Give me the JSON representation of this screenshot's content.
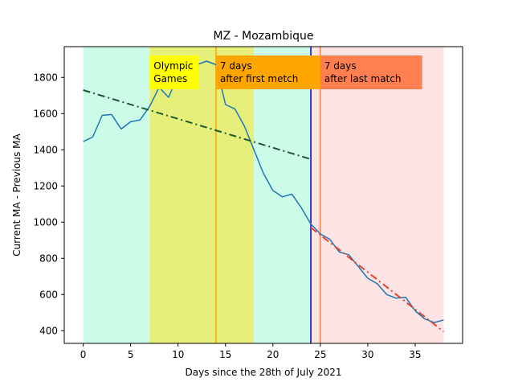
{
  "chart_data": {
    "type": "line",
    "title": "MZ - Mozambique",
    "xlabel": "Days since the 28th of July 2021",
    "ylabel": "Current MA - Previous MA",
    "xlim": [
      -2,
      40
    ],
    "ylim": [
      330,
      1970
    ],
    "xticks": [
      0,
      5,
      10,
      15,
      20,
      25,
      30,
      35
    ],
    "yticks": [
      400,
      600,
      800,
      1000,
      1200,
      1400,
      1600,
      1800
    ],
    "grid": false,
    "regions": [
      {
        "x0": 0,
        "x1": 7,
        "color": "#ccfbe8"
      },
      {
        "x0": 7,
        "x1": 18,
        "color": "#e5ef7a"
      },
      {
        "x0": 18,
        "x1": 24,
        "color": "#ccfbe8"
      },
      {
        "x0": 24,
        "x1": 38,
        "color": "#fde4e4"
      }
    ],
    "vlines": [
      {
        "x": 14,
        "color": "#ffa500"
      },
      {
        "x": 24,
        "color": "#0000cc"
      },
      {
        "x": 25,
        "color": "#ff7f50"
      }
    ],
    "annotations": [
      {
        "text": [
          "Olympic",
          "Games"
        ],
        "x": 7,
        "bg": "#ffff00"
      },
      {
        "text": [
          "7 days",
          "after first metch"
        ],
        "x": 14,
        "bg": "#ffa500"
      },
      {
        "text": [
          "7 days",
          "after last match"
        ],
        "x": 25,
        "bg": "#ff7f50"
      }
    ],
    "series": [
      {
        "color": "#1f77b4",
        "x": [
          0,
          1,
          2,
          3,
          4,
          5,
          6,
          7,
          8,
          9,
          10,
          11,
          12,
          13,
          14,
          15,
          16,
          17,
          18,
          19,
          20,
          21,
          22,
          23,
          24,
          25,
          26,
          27,
          28,
          29,
          30,
          31,
          32,
          33,
          34,
          35,
          36,
          37,
          38
        ],
        "values": [
          1445,
          1470,
          1590,
          1595,
          1515,
          1555,
          1565,
          1640,
          1745,
          1690,
          1810,
          1870,
          1870,
          1890,
          1870,
          1650,
          1625,
          1530,
          1400,
          1270,
          1175,
          1140,
          1155,
          1080,
          990,
          935,
          905,
          835,
          820,
          755,
          690,
          660,
          600,
          580,
          585,
          510,
          465,
          445,
          460
        ]
      }
    ],
    "trendlines": [
      {
        "x": [
          0,
          24
        ],
        "values": [
          1730,
          1348
        ],
        "color": "#1a5a2e",
        "style": "dashdot"
      },
      {
        "x": [
          24,
          38
        ],
        "values": [
          970,
          395
        ],
        "color": "#e8402a",
        "style": "dashdot"
      }
    ]
  }
}
